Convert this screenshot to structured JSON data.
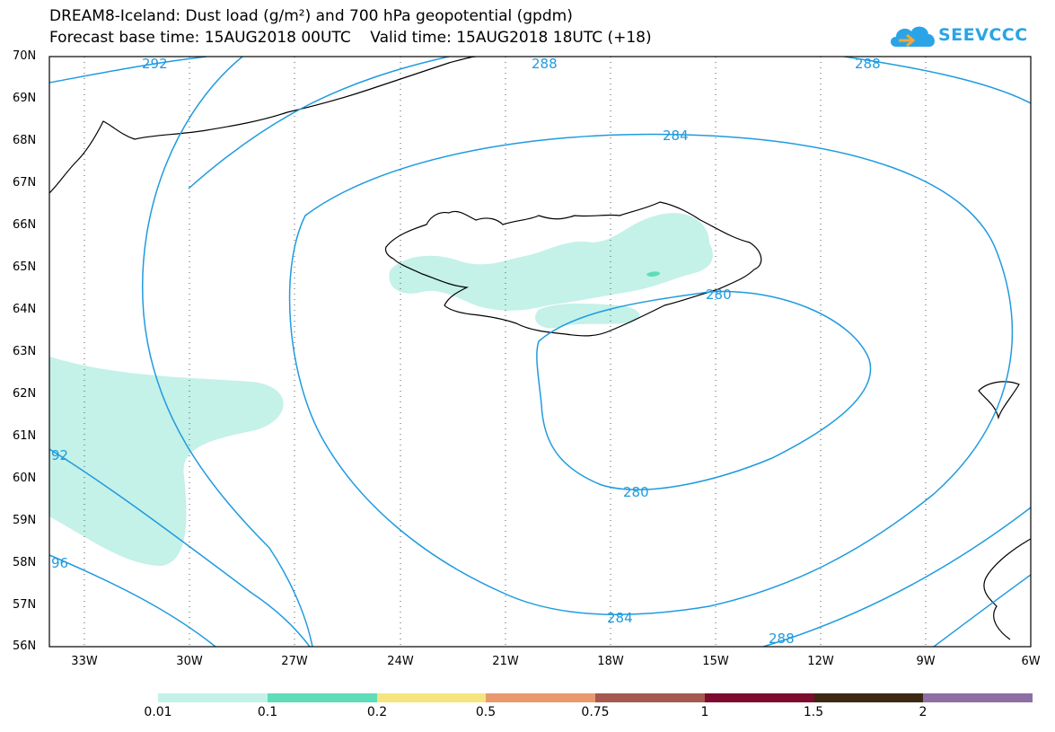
{
  "title": {
    "line1": "DREAM8-Iceland: Dust load (g/m²) and 700 hPa geopotential (gpdm)",
    "line2": "Forecast base time: 15AUG2018 00UTC    Valid time: 15AUG2018 18UTC (+18)"
  },
  "logo": {
    "text": "SEEVCCC",
    "icon": "cloud-logo-icon"
  },
  "axes": {
    "lat_labels": [
      "70N",
      "69N",
      "68N",
      "67N",
      "66N",
      "65N",
      "64N",
      "63N",
      "62N",
      "61N",
      "60N",
      "59N",
      "58N",
      "57N",
      "56N"
    ],
    "lon_labels": [
      "33W",
      "30W",
      "27W",
      "24W",
      "21W",
      "18W",
      "15W",
      "12W",
      "9W",
      "6W"
    ],
    "lat_range": [
      56,
      70
    ],
    "lon_range": [
      -34.5,
      -6
    ],
    "grid": "dotted"
  },
  "contours": {
    "color": "#1e9be0",
    "labels": [
      "292",
      "288",
      "288",
      "284",
      "280",
      "280",
      "92",
      "96",
      "284",
      "288"
    ]
  },
  "colorbar": {
    "labels": [
      "0.01",
      "0.1",
      "0.2",
      "0.5",
      "0.75",
      "1",
      "1.5",
      "2"
    ],
    "colors": [
      "#c4f1e8",
      "#5fdcb8",
      "#f5e57e",
      "#e89a6e",
      "#a6594f",
      "#7c0b2d",
      "#3d2813",
      "#8d6fa3"
    ]
  },
  "dust_color": "#c4f1e8"
}
